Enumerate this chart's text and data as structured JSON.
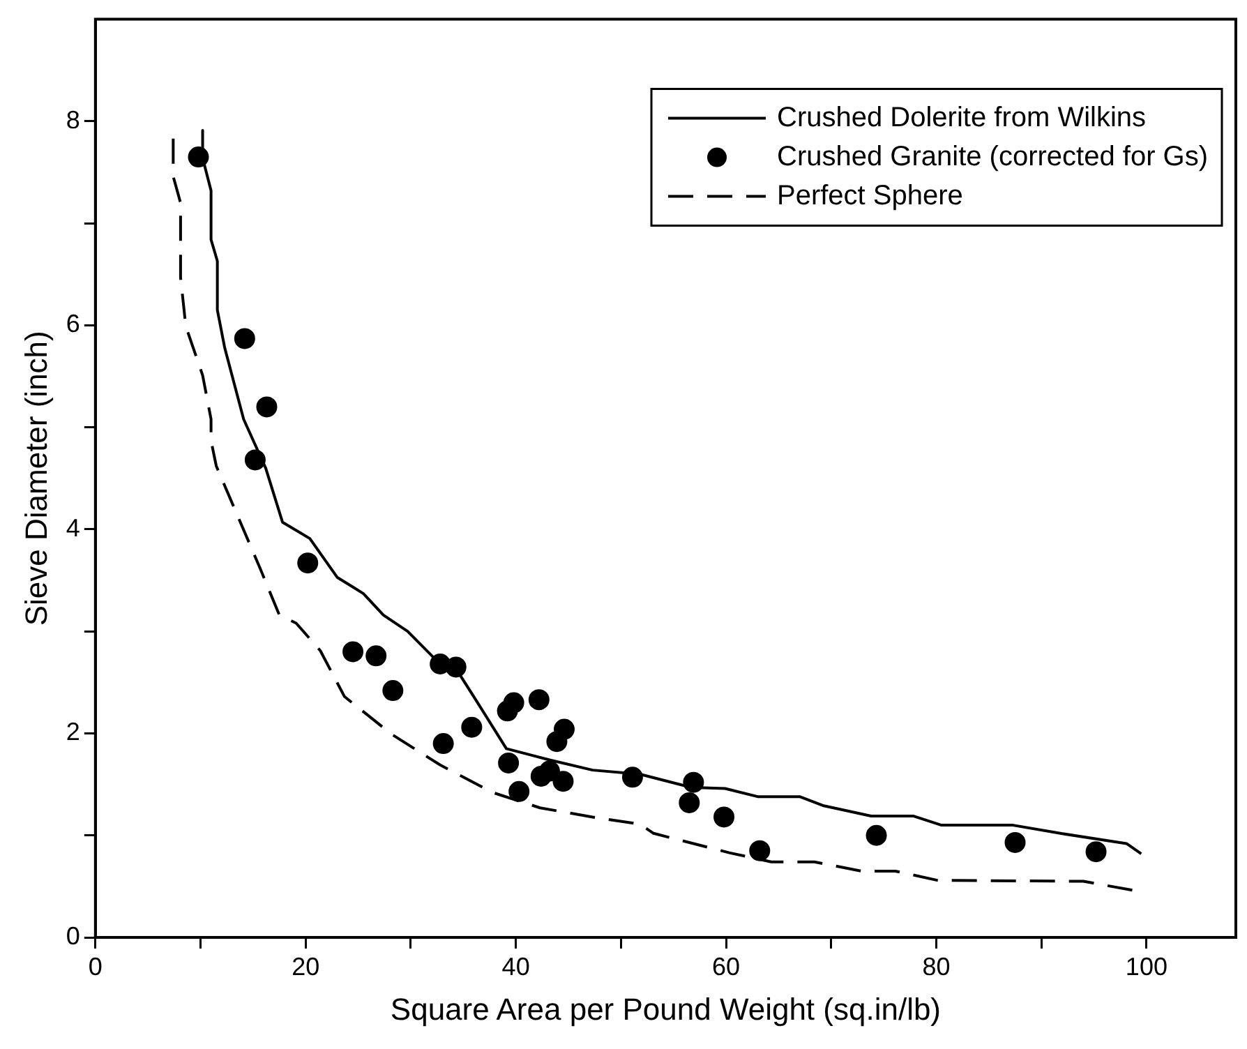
{
  "chart_data": {
    "type": "line",
    "xlabel": "Square Area per Pound Weight (sq.in/lb)",
    "ylabel": "Sieve Diameter (inch)",
    "xlim": [
      0,
      108.5
    ],
    "ylim": [
      0,
      9
    ],
    "xticks": [
      0,
      {
        "value": 10,
        "label": null
      },
      20,
      {
        "value": 30,
        "label": null
      },
      40,
      {
        "value": 50,
        "label": null
      },
      60,
      {
        "value": 70,
        "label": null
      },
      80,
      {
        "value": 90,
        "label": null
      },
      100
    ],
    "yticks": [
      0,
      {
        "value": 1,
        "label": null
      },
      2,
      {
        "value": 3,
        "label": null
      },
      4,
      {
        "value": 5,
        "label": null
      },
      6,
      {
        "value": 7,
        "label": null
      },
      8
    ],
    "grid": false,
    "legend": "top right",
    "series": [
      {
        "name": "Crushed Dolerite from Wilkins",
        "color": "#000000",
        "marker": "none",
        "line_style": "solid",
        "x": [
          10.2,
          10.2,
          11.0,
          11.0,
          11.6,
          11.6,
          12.3,
          14.1,
          16.2,
          17.8,
          20.4,
          23.0,
          25.5,
          27.4,
          29.7,
          32.3,
          34.7,
          36.0,
          39.1,
          43.2,
          47.3,
          51.8,
          56.7,
          59.9,
          63.0,
          67.0,
          69.3,
          73.8,
          77.8,
          80.5,
          87.3,
          91.8,
          98.1,
          99.5
        ],
        "values": [
          7.91,
          7.64,
          7.32,
          6.84,
          6.63,
          6.15,
          5.78,
          5.08,
          4.6,
          4.07,
          3.91,
          3.53,
          3.37,
          3.16,
          3.0,
          2.73,
          2.57,
          2.36,
          1.85,
          1.74,
          1.64,
          1.6,
          1.47,
          1.46,
          1.38,
          1.38,
          1.29,
          1.19,
          1.19,
          1.1,
          1.1,
          1.02,
          0.92,
          0.82
        ]
      },
      {
        "name": "Crushed Granite (corrected for Gs)",
        "type": "scatter",
        "color": "#000000",
        "marker": "circle",
        "x": [
          9.8,
          14.2,
          16.3,
          15.2,
          20.2,
          24.5,
          26.7,
          28.3,
          32.8,
          34.3,
          33.1,
          35.8,
          39.2,
          39.8,
          42.2,
          39.3,
          40.3,
          42.4,
          43.2,
          43.9,
          44.6,
          44.5,
          51.1,
          56.9,
          56.5,
          59.8,
          63.2,
          74.3,
          87.5,
          95.2
        ],
        "values": [
          7.65,
          5.87,
          5.2,
          4.68,
          3.67,
          2.8,
          2.76,
          2.42,
          2.68,
          2.65,
          1.9,
          2.06,
          2.22,
          2.3,
          2.33,
          1.71,
          1.43,
          1.58,
          1.63,
          1.92,
          2.04,
          1.53,
          1.57,
          1.52,
          1.32,
          1.18,
          0.85,
          1.0,
          0.93,
          0.84
        ]
      },
      {
        "name": "Perfect Sphere",
        "color": "#000000",
        "marker": "none",
        "line_style": "dashed",
        "x": [
          7.4,
          7.4,
          8.1,
          8.1,
          8.6,
          10.2,
          11.0,
          11.0,
          11.5,
          15.7,
          17.5,
          19.1,
          21.4,
          23.7,
          28.2,
          32.8,
          37.8,
          42.3,
          47.3,
          51.8,
          53.1,
          60.3,
          64.3,
          68.4,
          72.9,
          76.1,
          80.1,
          94.0,
          98.8
        ],
        "values": [
          7.83,
          7.46,
          7.2,
          6.47,
          5.99,
          5.51,
          5.08,
          4.87,
          4.62,
          3.61,
          3.16,
          3.08,
          2.81,
          2.36,
          1.99,
          1.69,
          1.42,
          1.27,
          1.18,
          1.11,
          1.02,
          0.83,
          0.74,
          0.74,
          0.65,
          0.65,
          0.56,
          0.55,
          0.46
        ]
      }
    ]
  }
}
